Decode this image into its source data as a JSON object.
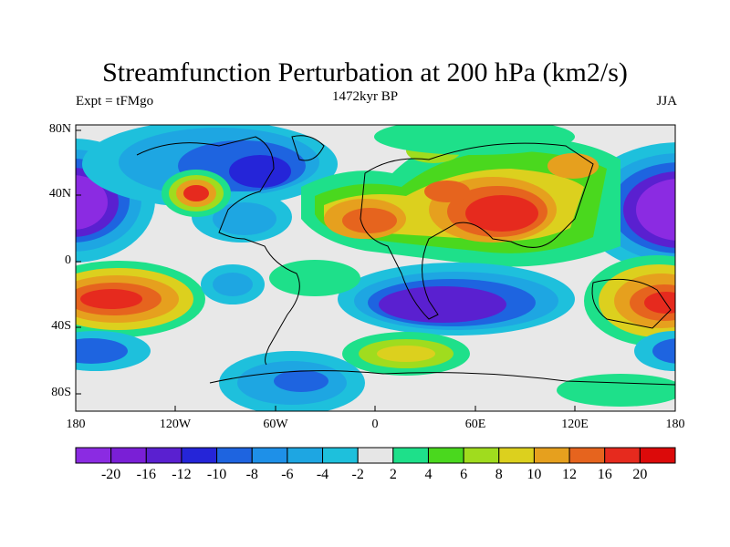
{
  "title": "Streamfunction Perturbation at 200 hPa (km2/s)",
  "left_label": "Expt = tFMgo",
  "center_label": "1472kyr BP",
  "right_label": "JJA",
  "lat_labels": [
    "80N",
    "40N",
    "0",
    "40S",
    "80S"
  ],
  "lon_labels": [
    "180",
    "120W",
    "60W",
    "0",
    "60E",
    "120E",
    "180"
  ],
  "colorbar": {
    "labels": [
      "-20",
      "-16",
      "-12",
      "-10",
      "-8",
      "-6",
      "-4",
      "-2",
      "2",
      "4",
      "6",
      "8",
      "10",
      "12",
      "16",
      "20"
    ],
    "colors": [
      "#8b2be2",
      "#7a1fd6",
      "#5a20d0",
      "#2525d8",
      "#1e64e0",
      "#1e90e8",
      "#1ea6e2",
      "#1ec0dc",
      "#e6e6e6",
      "#1ee08a",
      "#4ad81e",
      "#a0dc1e",
      "#dcd01e",
      "#e6a01e",
      "#e6641e",
      "#e62a1e",
      "#dc0a0a"
    ]
  }
}
